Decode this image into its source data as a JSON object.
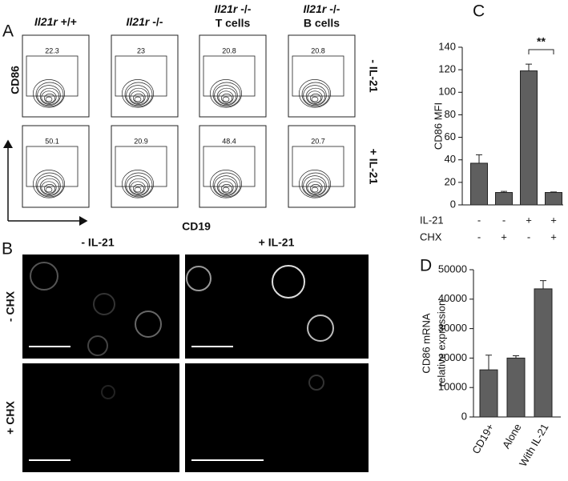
{
  "panel_a": {
    "label": "A",
    "columns": [
      {
        "gene": "Il21r",
        "genotype": "+/+"
      },
      {
        "gene": "Il21r",
        "genotype": "-/-"
      },
      {
        "gene": "Il21r",
        "genotype": "-/-",
        "cells": "T cells"
      },
      {
        "gene": "Il21r",
        "genotype": "-/-",
        "cells": "B cells"
      }
    ],
    "rows": [
      "- IL-21",
      "+ IL-21"
    ],
    "gates": [
      [
        "22.3",
        "23",
        "20.8",
        "20.8"
      ],
      [
        "50.1",
        "20.9",
        "48.4",
        "20.7"
      ]
    ],
    "y_axis": "CD86",
    "x_axis": "CD19"
  },
  "panel_b": {
    "label": "B",
    "columns": [
      "- IL-21",
      "+ IL-21"
    ],
    "rows": [
      "- CHX",
      "+ CHX"
    ]
  },
  "chart_data": [
    {
      "type": "bar",
      "label": "C",
      "ylabel": "CD86 MFI",
      "color": "#5f5f5f",
      "values": [
        37,
        11,
        119,
        11
      ],
      "errors": [
        7.5,
        1,
        6,
        0.5
      ],
      "conditions": [
        {
          "name": "IL-21",
          "values": [
            "-",
            "-",
            "+",
            "+"
          ]
        },
        {
          "name": "CHX",
          "values": [
            "-",
            "+",
            "-",
            "+"
          ]
        }
      ],
      "annotation": "**",
      "ylim": [
        0,
        140
      ],
      "yticks": [
        0,
        20,
        40,
        60,
        80,
        100,
        120,
        140
      ]
    },
    {
      "type": "bar",
      "label": "D",
      "ylabel": [
        "CD86 mRNA",
        "relative expression"
      ],
      "color": "#5f5f5f",
      "categories": [
        "CD19+",
        "Alone",
        "With IL-21"
      ],
      "values": [
        16000,
        20000,
        43500
      ],
      "errors": [
        5000,
        800,
        2800
      ],
      "ylim": [
        0,
        50000
      ],
      "yticks": [
        0,
        10000,
        20000,
        30000,
        40000,
        50000
      ]
    }
  ]
}
